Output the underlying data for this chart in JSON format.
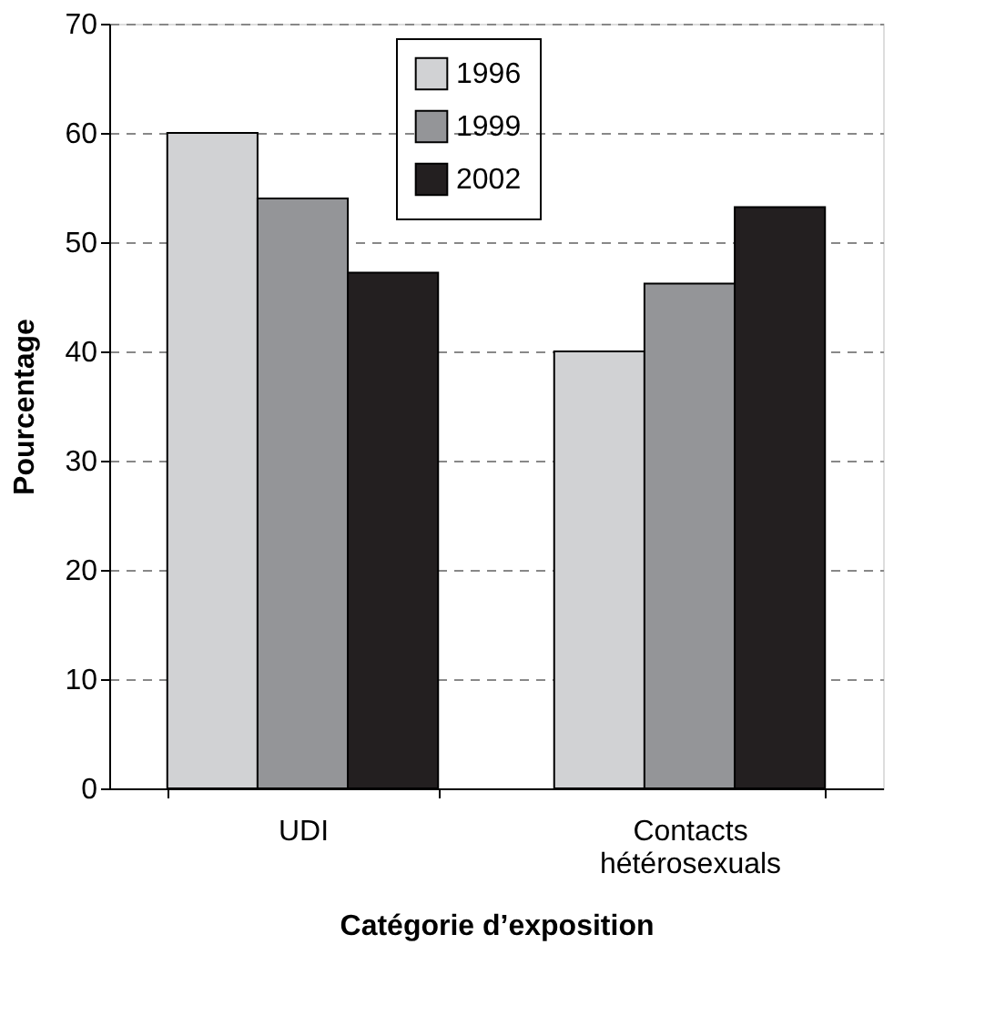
{
  "chart_data": {
    "type": "bar",
    "xlabel": "Catégorie d’exposition",
    "ylabel": "Pourcentage",
    "categories": [
      "UDI",
      "Contacts hétérosexuals"
    ],
    "series": [
      {
        "name": "1996",
        "color": "#d1d2d4",
        "values": [
          60,
          40
        ]
      },
      {
        "name": "1999",
        "color": "#949598",
        "values": [
          54,
          46.2
        ]
      },
      {
        "name": "2002",
        "color": "#231f20",
        "values": [
          47.2,
          53.2
        ]
      }
    ],
    "ylim": [
      0,
      70
    ],
    "yticks": [
      0,
      10,
      20,
      30,
      40,
      50,
      60,
      70
    ],
    "grid": "y",
    "legend": "top"
  }
}
